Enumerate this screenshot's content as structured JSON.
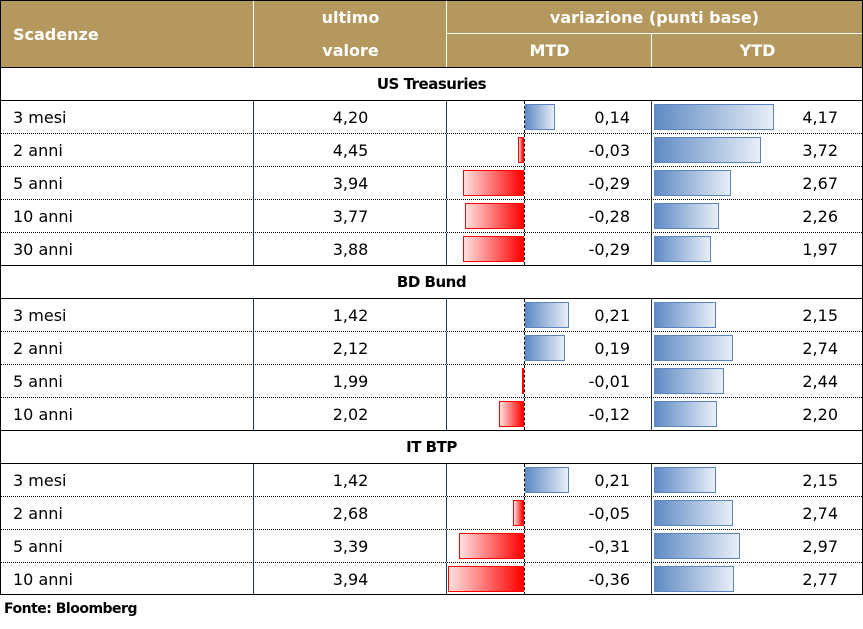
{
  "header": {
    "col1": "Scadenze",
    "col2_line1": "ultimo",
    "col2_line2": "valore",
    "group": "variazione (punti base)",
    "mtd": "MTD",
    "ytd": "YTD"
  },
  "chart_data": {
    "type": "table",
    "columns": [
      "Scadenze",
      "ultimo valore",
      "MTD",
      "YTD"
    ],
    "sections": [
      {
        "title": "US Treasuries",
        "rows": [
          {
            "name": "3 mesi",
            "value": "4,20",
            "mtd": 0.14,
            "ytd": 4.17
          },
          {
            "name": "2 anni",
            "value": "4,45",
            "mtd": -0.03,
            "ytd": 3.72
          },
          {
            "name": "5 anni",
            "value": "3,94",
            "mtd": -0.29,
            "ytd": 2.67
          },
          {
            "name": "10 anni",
            "value": "3,77",
            "mtd": -0.28,
            "ytd": 2.26
          },
          {
            "name": "30 anni",
            "value": "3,88",
            "mtd": -0.29,
            "ytd": 1.97
          }
        ]
      },
      {
        "title": "BD Bund",
        "rows": [
          {
            "name": "3 mesi",
            "value": "1,42",
            "mtd": 0.21,
            "ytd": 2.15
          },
          {
            "name": "2 anni",
            "value": "2,12",
            "mtd": 0.19,
            "ytd": 2.74
          },
          {
            "name": "5 anni",
            "value": "1,99",
            "mtd": -0.01,
            "ytd": 2.44
          },
          {
            "name": "10 anni",
            "value": "2,02",
            "mtd": -0.12,
            "ytd": 2.2
          }
        ]
      },
      {
        "title": "IT BTP",
        "rows": [
          {
            "name": "3 mesi",
            "value": "1,42",
            "mtd": 0.21,
            "ytd": 2.15
          },
          {
            "name": "2 anni",
            "value": "2,68",
            "mtd": -0.05,
            "ytd": 2.74
          },
          {
            "name": "5 anni",
            "value": "3,39",
            "mtd": -0.31,
            "ytd": 2.97
          },
          {
            "name": "10 anni",
            "value": "3,94",
            "mtd": -0.36,
            "ytd": 2.77
          }
        ]
      }
    ]
  },
  "colors": {
    "header": "#b5985d",
    "positive": "#5f8bc4",
    "negative": "#ff0000"
  },
  "footer": "Fonte: Bloomberg"
}
